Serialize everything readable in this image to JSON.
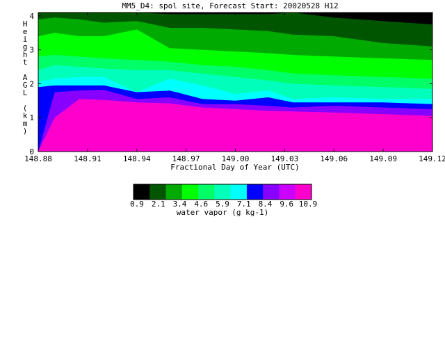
{
  "chart_data": {
    "type": "heatmap",
    "title": "MM5_D4: spol site,  Forecast Start: 20020528 H12",
    "xlabel": "Fractional Day of Year (UTC)",
    "ylabel": "Height AGL (km)",
    "xlim": [
      148.88,
      149.12
    ],
    "ylim": [
      0,
      4.1
    ],
    "x_ticks": [
      "148.88",
      "148.91",
      "148.94",
      "148.97",
      "149.00",
      "149.03",
      "149.06",
      "149.09",
      "149.12"
    ],
    "y_ticks": [
      "0",
      "1",
      "2",
      "3",
      "4"
    ],
    "colorbar": {
      "label": "water vapor (g kg-1)",
      "tick_labels": [
        "0.9",
        "2.1",
        "3.4",
        "4.6",
        "5.9",
        "7.1",
        "8.4",
        "9.6",
        "10.9"
      ],
      "colors": [
        "#000000",
        "#005500",
        "#00aa00",
        "#00ff00",
        "#00ff66",
        "#00ffbb",
        "#00ffff",
        "#0000ff",
        "#8800ff",
        "#cc00ff",
        "#ff00cc"
      ]
    },
    "x": [
      148.88,
      148.89,
      148.905,
      148.92,
      148.94,
      148.96,
      148.98,
      149.0,
      149.02,
      149.035,
      149.06,
      149.09,
      149.12
    ],
    "contour_heights_km": [
      {
        "level": "9.6",
        "y": [
          0.0,
          1.0,
          1.55,
          1.52,
          1.45,
          1.42,
          1.3,
          1.25,
          1.2,
          1.18,
          1.15,
          1.1,
          1.05
        ]
      },
      {
        "level": "8.4",
        "y": [
          0.0,
          1.75,
          1.8,
          1.82,
          1.55,
          1.6,
          1.4,
          1.4,
          1.35,
          1.3,
          1.35,
          1.3,
          1.25
        ]
      },
      {
        "level": "7.1",
        "y": [
          1.9,
          1.95,
          1.95,
          1.95,
          1.75,
          1.8,
          1.55,
          1.5,
          1.6,
          1.45,
          1.45,
          1.45,
          1.4
        ]
      },
      {
        "level": "5.9",
        "y": [
          2.05,
          2.15,
          2.2,
          2.2,
          1.75,
          2.15,
          1.95,
          1.7,
          1.8,
          1.55,
          1.6,
          1.55,
          1.55
        ]
      },
      {
        "level": "4.6",
        "y": [
          2.4,
          2.55,
          2.5,
          2.45,
          2.4,
          2.4,
          2.3,
          2.2,
          2.1,
          2.0,
          1.95,
          1.9,
          1.85
        ]
      },
      {
        "level": "3.4",
        "y": [
          2.8,
          2.85,
          2.8,
          2.75,
          2.7,
          2.65,
          2.55,
          2.5,
          2.4,
          2.3,
          2.25,
          2.2,
          2.15
        ]
      },
      {
        "level": "2.1",
        "y": [
          3.4,
          3.5,
          3.4,
          3.4,
          3.6,
          3.05,
          3.0,
          2.95,
          2.9,
          2.85,
          2.8,
          2.75,
          2.7
        ]
      },
      {
        "level": "0.9",
        "y": [
          3.9,
          3.95,
          3.9,
          3.8,
          3.85,
          3.65,
          3.65,
          3.6,
          3.55,
          3.45,
          3.4,
          3.2,
          3.1
        ]
      },
      {
        "level": "min",
        "y": [
          4.1,
          4.1,
          4.1,
          4.1,
          4.1,
          4.05,
          4.05,
          4.05,
          4.05,
          4.1,
          3.95,
          3.85,
          3.75
        ]
      }
    ]
  }
}
